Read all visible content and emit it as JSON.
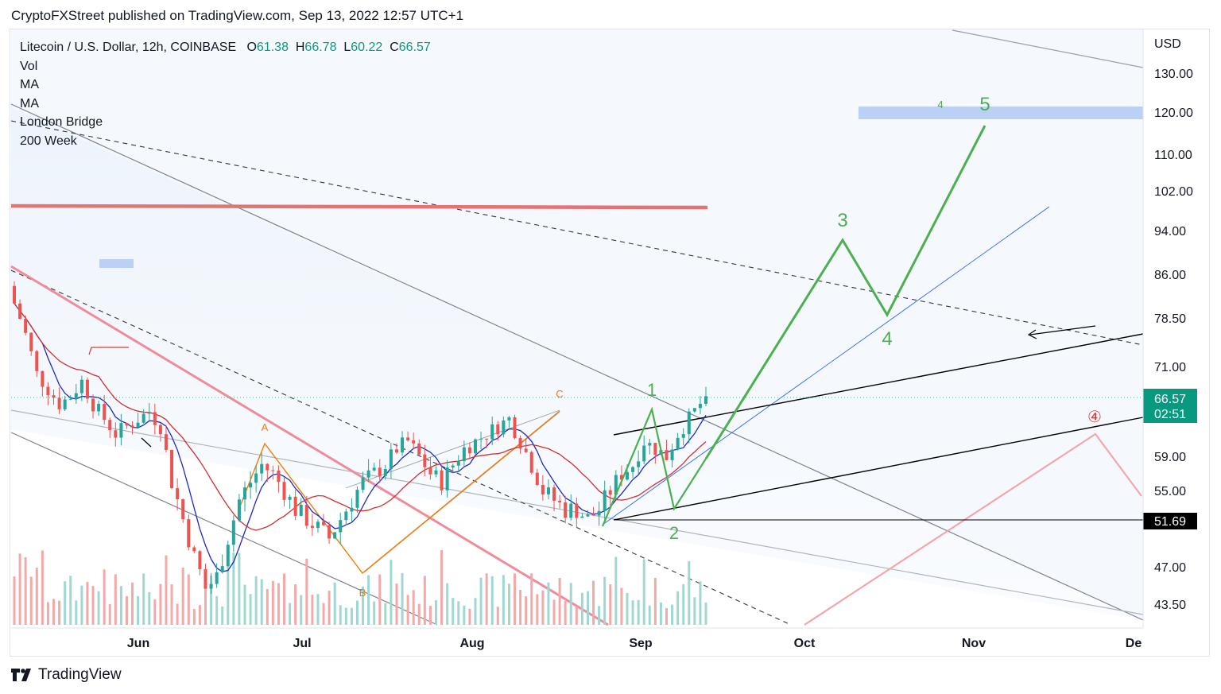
{
  "header": {
    "publisher_line": "CryptoFXStreet published on TradingView.com, Sep 13, 2022 12:57 UTC+1"
  },
  "legend": {
    "symbol": "Litecoin / U.S. Dollar, 12h, COINBASE",
    "open_label": "O",
    "open": "61.38",
    "high_label": "H",
    "high": "66.78",
    "low_label": "L",
    "low": "60.22",
    "close_label": "C",
    "close": "66.57",
    "indicators": [
      "Vol",
      "MA",
      "MA",
      "London Bridge",
      "200 Week"
    ]
  },
  "footer": {
    "brand": "TradingView"
  },
  "chart_data": {
    "type": "candlestick",
    "title": "Litecoin / U.S. Dollar, 12h, COINBASE",
    "currency_label": "USD",
    "y_ticks": [
      130.0,
      120.0,
      110.0,
      102.0,
      94.0,
      86.0,
      78.5,
      71.0,
      59.0,
      55.0,
      47.0,
      43.5
    ],
    "y_tick_labels": [
      "130.00",
      "120.00",
      "110.00",
      "102.00",
      "94.00",
      "86.00",
      "78.50",
      "71.00",
      "59.00",
      "55.00",
      "47.00",
      "43.50"
    ],
    "x_tick_labels": [
      "Jun",
      "Jul",
      "Aug",
      "Sep",
      "Oct",
      "Nov",
      "De"
    ],
    "last_price": {
      "value": "66.57",
      "countdown": "02:51",
      "color": "#089981"
    },
    "support_level": {
      "value": "51.69",
      "color": "#000000"
    },
    "close_series": [
      81,
      76,
      70,
      68,
      66,
      67,
      69,
      66,
      64,
      62,
      63,
      64,
      65,
      63,
      56,
      52,
      48,
      45,
      46,
      50,
      54,
      56,
      58,
      57,
      55,
      53,
      52,
      51,
      50,
      52,
      54,
      56,
      57,
      58,
      60,
      61,
      59,
      57,
      56,
      58,
      60,
      61,
      62,
      63,
      64,
      61,
      58,
      55,
      54,
      53,
      53,
      52,
      53,
      55,
      57,
      58,
      61,
      60,
      59,
      62,
      64,
      66
    ],
    "elliott_waves": {
      "bullish_projection": [
        "1",
        "2",
        "3",
        "4",
        "5"
      ],
      "corrective": [
        "A",
        "B",
        "C"
      ],
      "target_zone_label": "4",
      "bearish_label": "④"
    },
    "colors": {
      "up": "#26a69a",
      "down": "#ef5350",
      "ma_fast": "#2128c8",
      "ma_slow": "#d32f2f",
      "resistance": "#e57373",
      "wave": "#4caf50",
      "abc": "#f57c00",
      "zone": "#bbd0f5"
    },
    "grid": false,
    "legend_position": "top-left"
  }
}
